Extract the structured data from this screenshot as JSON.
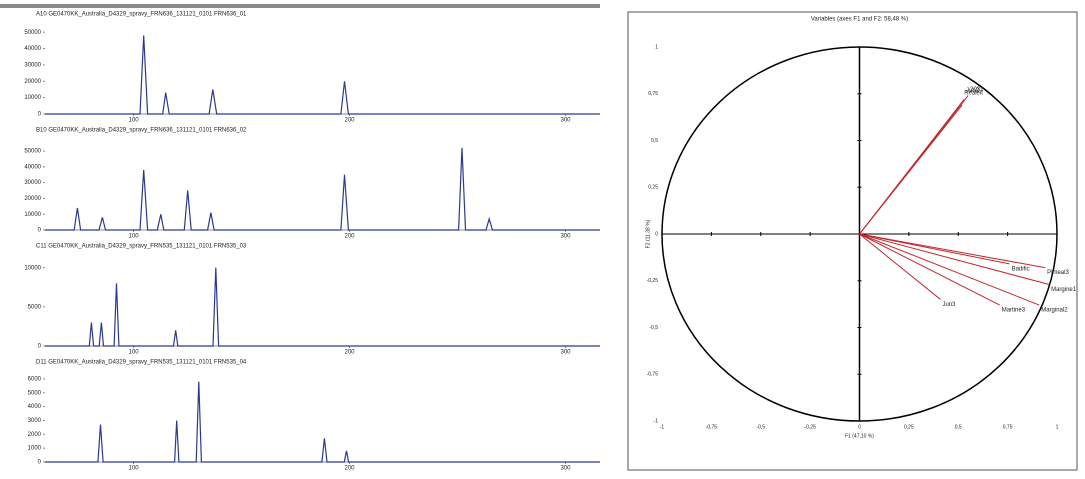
{
  "chart_data": [
    {
      "type": "line",
      "title": "A10 GE0470KK_Australia_D4329_spravy_FRN636_131121_0101 FRN636_01",
      "color": "#2b3a8f",
      "x": [
        59,
        103,
        104.7,
        106.5,
        113.5,
        114.9,
        116.5,
        135,
        136.7,
        138.5,
        196,
        197.7,
        199.5,
        316
      ],
      "values": [
        0,
        0,
        48000,
        0,
        0,
        13000,
        0,
        0,
        15000,
        0,
        0,
        20000,
        0,
        0
      ],
      "xlim": [
        59,
        316
      ],
      "xticks": [
        100,
        200,
        300
      ],
      "ylim": [
        0,
        55000
      ],
      "yticks": [
        0,
        10000,
        20000,
        30000,
        40000,
        50000
      ]
    },
    {
      "type": "line",
      "title": "B10 GE0470KK_Australia_D4329_spravy_FRN636_131121_0101 FRN636_02",
      "color": "#2b3a8f",
      "x": [
        59,
        72.5,
        74,
        75.5,
        84,
        85.6,
        87,
        103,
        104.7,
        106.5,
        111,
        112.6,
        114,
        123.5,
        125.1,
        126.7,
        134.3,
        135.8,
        137.3,
        196,
        197.7,
        199.5,
        250.5,
        252.1,
        253.7,
        263.2,
        264.7,
        266.2,
        316
      ],
      "values": [
        0,
        0,
        14000,
        0,
        0,
        8000,
        0,
        0,
        38000,
        0,
        0,
        10000,
        0,
        0,
        25000,
        0,
        0,
        11000,
        0,
        0,
        35000,
        0,
        0,
        52000,
        0,
        0,
        7000,
        0,
        0
      ],
      "xlim": [
        59,
        316
      ],
      "xticks": [
        100,
        200,
        300
      ],
      "ylim": [
        0,
        57000
      ],
      "yticks": [
        0,
        10000,
        20000,
        30000,
        40000,
        50000
      ]
    },
    {
      "type": "line",
      "title": "C11 GE0470KK_Australia_D4329_spravy_FRN535_131121_0101 FRN535_03",
      "color": "#2b3a8f",
      "x": [
        59,
        79.5,
        80.5,
        81.5,
        84.1,
        85.1,
        86.1,
        91,
        92.1,
        93.2,
        118.5,
        119.5,
        120.5,
        136.8,
        138.1,
        139.4,
        316
      ],
      "values": [
        0,
        0,
        3000,
        0,
        0,
        3000,
        0,
        0,
        8000,
        0,
        0,
        2000,
        0,
        0,
        10000,
        0,
        0
      ],
      "xlim": [
        59,
        316
      ],
      "xticks": [
        100,
        200,
        300
      ],
      "ylim": [
        0,
        11500
      ],
      "yticks": [
        0,
        5000,
        10000
      ]
    },
    {
      "type": "line",
      "title": "D11 GE0470KK_Australia_D4329_spravy_FRN535_131121_0101 FRN535_04",
      "color": "#2b3a8f",
      "x": [
        59,
        83.5,
        84.7,
        85.9,
        119,
        120,
        121,
        129,
        130.2,
        131.4,
        187.2,
        188.4,
        189.6,
        197.6,
        198.6,
        199.6,
        316
      ],
      "values": [
        0,
        0,
        2700,
        0,
        0,
        3000,
        0,
        0,
        5800,
        0,
        0,
        1700,
        0,
        0,
        800,
        0,
        0
      ],
      "xlim": [
        59,
        316
      ],
      "xticks": [
        100,
        200,
        300
      ],
      "ylim": [
        0,
        6500
      ],
      "yticks": [
        0,
        1000,
        2000,
        3000,
        4000,
        5000,
        6000
      ]
    },
    {
      "type": "vector",
      "title": "Variables (axes F1 and F2: 58,48 %)",
      "x_label": "F1 (47,10 %)",
      "y_label": "F2 (11,38 %)",
      "color": "#c0282d",
      "labels": [
        "2031",
        "Jun2",
        "Realeit",
        "Badific",
        "Pimeal3",
        "Margine1",
        "Marginal2",
        "Jun3",
        "Martine3"
      ],
      "x": [
        0.55,
        0.53,
        0.52,
        0.76,
        0.94,
        0.96,
        0.91,
        0.41,
        0.71
      ],
      "values": [
        0.74,
        0.72,
        0.69,
        -0.16,
        -0.18,
        -0.27,
        -0.38,
        -0.35,
        -0.38
      ],
      "xlim": [
        -1,
        1
      ],
      "ylim": [
        -1,
        1
      ],
      "xticks": [
        -1,
        {
          "value": -0.75,
          "label": "-0,75"
        },
        {
          "value": -0.5,
          "label": "-0,5"
        },
        {
          "value": -0.25,
          "label": "-0,25"
        },
        0,
        {
          "value": 0.25,
          "label": "0,25"
        },
        {
          "value": 0.5,
          "label": "0,5"
        },
        {
          "value": 0.75,
          "label": "0,75"
        },
        1
      ],
      "yticks": [
        -1,
        {
          "value": -0.75,
          "label": "-0,75"
        },
        {
          "value": -0.5,
          "label": "-0,5"
        },
        {
          "value": -0.25,
          "label": "-0,25"
        },
        0,
        {
          "value": 0.25,
          "label": "0,25"
        },
        {
          "value": 0.5,
          "label": "0,5"
        },
        {
          "value": 0.75,
          "label": "0,75"
        },
        1
      ]
    }
  ]
}
